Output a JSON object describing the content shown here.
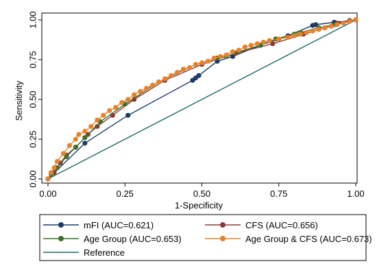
{
  "chart_data": {
    "type": "line",
    "xlabel": "1-Specificity",
    "ylabel": "Sensitivity",
    "xlim": [
      0,
      1
    ],
    "ylim": [
      0,
      1
    ],
    "x_ticks": [
      "0.00",
      "0.25",
      "0.50",
      "0.75",
      "1.00"
    ],
    "y_ticks": [
      "0.00",
      "0.25",
      "0.50",
      "0.75",
      "1.00"
    ],
    "grid": false,
    "legend_position": "bottom",
    "series": [
      {
        "name": "mFI (AUC=0.621)",
        "color": "#1a3a68",
        "marker": true,
        "x": [
          0,
          0.12,
          0.26,
          0.47,
          0.48,
          0.49,
          0.55,
          0.6,
          0.69,
          0.78,
          0.86,
          0.87,
          0.93,
          0.98,
          1.0
        ],
        "y": [
          0,
          0.225,
          0.4,
          0.62,
          0.635,
          0.65,
          0.74,
          0.77,
          0.84,
          0.9,
          0.965,
          0.97,
          0.985,
          0.995,
          1.0
        ]
      },
      {
        "name": "CFS (AUC=0.656)",
        "color": "#8b3a3a",
        "marker": true,
        "x": [
          0,
          0.02,
          0.04,
          0.06,
          0.09,
          0.13,
          0.16,
          0.21,
          0.28,
          0.38,
          0.5,
          0.61,
          0.73,
          0.83,
          0.9,
          0.94,
          1.0
        ],
        "y": [
          0,
          0.04,
          0.1,
          0.15,
          0.2,
          0.28,
          0.33,
          0.4,
          0.5,
          0.62,
          0.72,
          0.79,
          0.85,
          0.91,
          0.95,
          0.98,
          1.0
        ]
      },
      {
        "name": "Age Group (AUC=0.653)",
        "color": "#3d6e2a",
        "marker": true,
        "x": [
          0,
          0.01,
          0.03,
          0.06,
          0.09,
          0.12,
          0.17,
          0.25,
          0.36,
          0.48,
          0.55,
          0.58,
          0.62,
          0.69,
          0.74,
          0.8,
          0.82,
          0.88,
          0.93,
          1.0
        ],
        "y": [
          0,
          0.03,
          0.07,
          0.14,
          0.2,
          0.26,
          0.36,
          0.47,
          0.61,
          0.72,
          0.76,
          0.77,
          0.8,
          0.84,
          0.88,
          0.91,
          0.92,
          0.95,
          0.97,
          1.0
        ]
      },
      {
        "name": "Age Group & CFS (AUC=0.673)",
        "color": "#e8822a",
        "marker": true,
        "x": [
          0,
          0.01,
          0.02,
          0.03,
          0.05,
          0.07,
          0.09,
          0.1,
          0.12,
          0.14,
          0.16,
          0.18,
          0.2,
          0.22,
          0.24,
          0.26,
          0.28,
          0.3,
          0.32,
          0.34,
          0.36,
          0.38,
          0.4,
          0.42,
          0.44,
          0.46,
          0.48,
          0.5,
          0.52,
          0.54,
          0.56,
          0.58,
          0.6,
          0.62,
          0.64,
          0.66,
          0.68,
          0.7,
          0.72,
          0.75,
          0.78,
          0.8,
          0.82,
          0.84,
          0.86,
          0.88,
          0.9,
          0.92,
          0.94,
          0.96,
          0.98,
          1.0
        ],
        "y": [
          0,
          0.04,
          0.07,
          0.11,
          0.16,
          0.21,
          0.25,
          0.28,
          0.3,
          0.33,
          0.37,
          0.4,
          0.43,
          0.45,
          0.48,
          0.5,
          0.53,
          0.55,
          0.57,
          0.59,
          0.61,
          0.63,
          0.65,
          0.67,
          0.69,
          0.7,
          0.72,
          0.73,
          0.74,
          0.76,
          0.77,
          0.78,
          0.8,
          0.81,
          0.83,
          0.84,
          0.85,
          0.86,
          0.87,
          0.88,
          0.89,
          0.9,
          0.91,
          0.92,
          0.93,
          0.94,
          0.95,
          0.96,
          0.97,
          0.98,
          0.99,
          1.0
        ]
      },
      {
        "name": "Reference",
        "color": "#1f6b6b",
        "marker": false,
        "x": [
          0,
          1
        ],
        "y": [
          0,
          1
        ]
      }
    ]
  }
}
